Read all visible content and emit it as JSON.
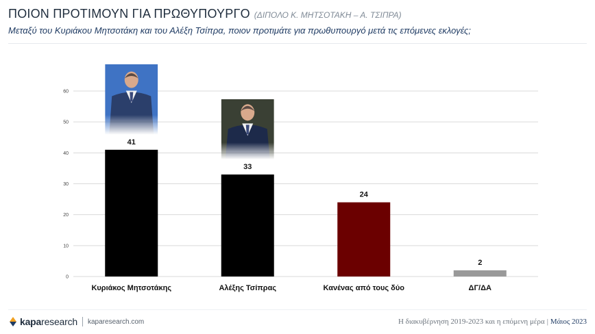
{
  "header": {
    "title": "ΠΟΙΟΝ ΠΡΟΤΙΜΟΥΝ ΓΙΑ ΠΡΩΘΥΠΟΥΡΓΟ",
    "subtitle": "(ΔΙΠΟΛΟ Κ. ΜΗΤΣΟΤΑΚΗ – Α. ΤΣΙΠΡΑ)",
    "question": "Μεταξύ του Κυριάκου Μητσοτάκη και του Αλέξη Τσίπρα, ποιον προτιμάτε για πρωθυπουργό μετά τις επόμενες εκλογές;"
  },
  "chart_data": {
    "type": "bar",
    "categories": [
      "Κυριάκος Μητσοτάκης",
      "Αλέξης Τσίπρας",
      "Κανένας από τους δύο",
      "ΔΓ/ΔΑ"
    ],
    "values": [
      41,
      33,
      24,
      2
    ],
    "value_labels": [
      "41",
      "33",
      "24",
      "2"
    ],
    "colors": [
      "#000000",
      "#000000",
      "#6b0000",
      "#999999"
    ],
    "ylim": [
      0,
      60
    ],
    "yticks": [
      "0",
      "10",
      "20",
      "30",
      "40",
      "50",
      "60"
    ],
    "grid": true,
    "legend": "none",
    "title": "",
    "xlabel": "",
    "ylabel": ""
  },
  "photos": [
    {
      "category_index": 0,
      "icon": "portrait-photo-icon",
      "suit": "#2b3f6b",
      "backdrop": "#3f73c4"
    },
    {
      "category_index": 1,
      "icon": "portrait-photo-icon",
      "suit": "#1d2a4a",
      "backdrop": "#3a4034"
    }
  ],
  "footer": {
    "brand_bold": "kapa",
    "brand_rest": "research",
    "site": "kaparesearch.com",
    "right_text": "Η διακυβέρνηση 2019-2023 και η επόμενη μέρα",
    "separator": "|",
    "date": "Μάιος 2023",
    "brand_colors": [
      "#f0a020",
      "#1f3b63"
    ]
  }
}
